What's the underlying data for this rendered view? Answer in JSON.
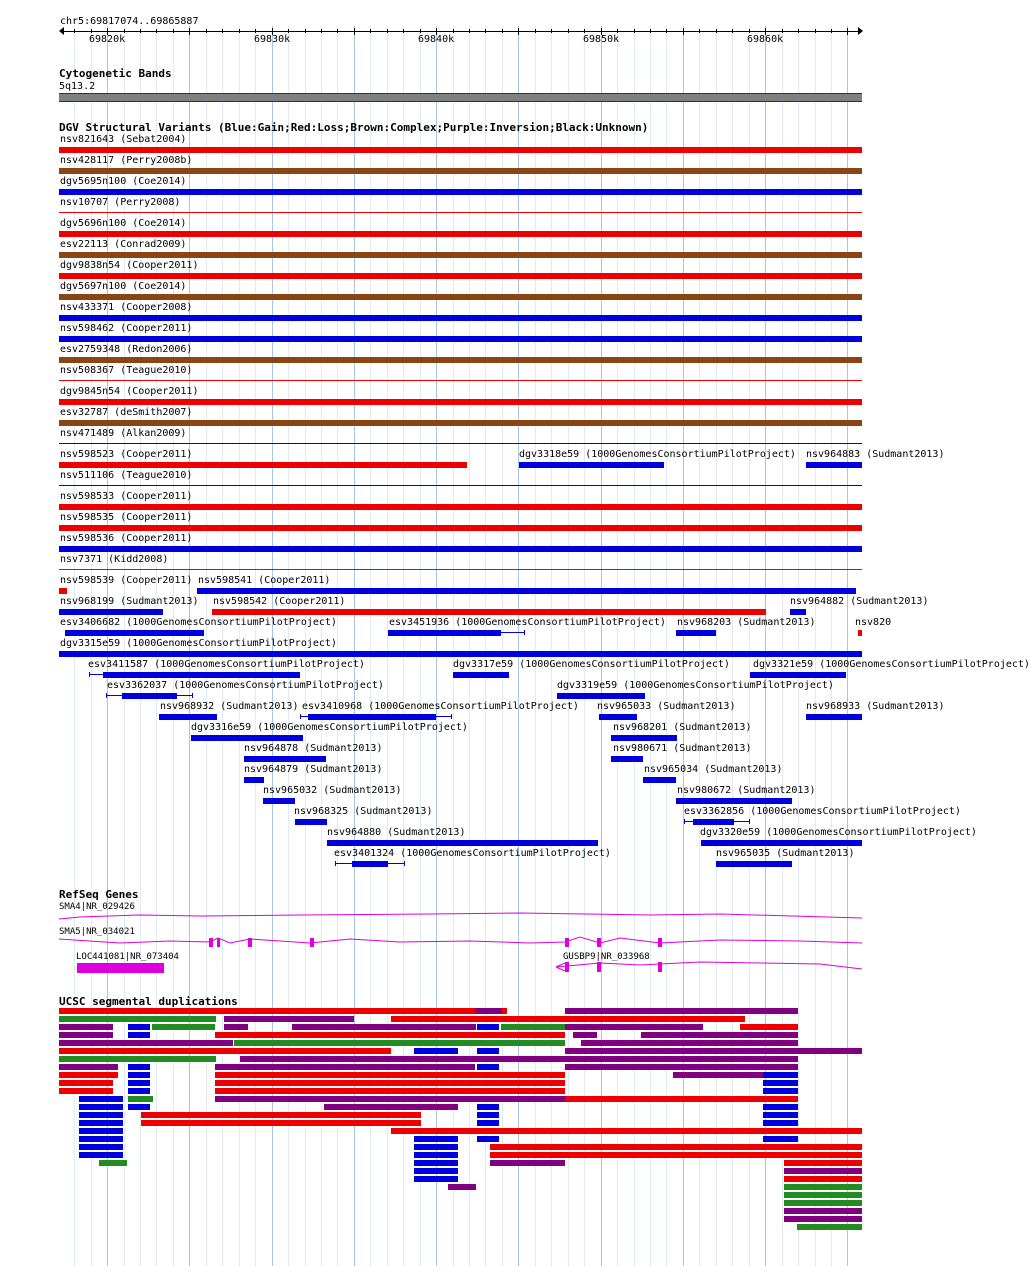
{
  "ruler": {
    "position": "chr5:69817074..69865887",
    "ticks": [
      {
        "label": "69820k",
        "pos": 69820000
      },
      {
        "label": "69830k",
        "pos": 69830000
      },
      {
        "label": "69840k",
        "pos": 69840000
      },
      {
        "label": "69850k",
        "pos": 69850000
      },
      {
        "label": "69860k",
        "pos": 69860000
      }
    ]
  },
  "colors": {
    "gain": "#0000dd",
    "loss": "#ee0000",
    "complex": "#8b4513",
    "inversion": "#800080",
    "seg_green": "#228b22",
    "refseq": "#dd00dd",
    "band": "#808080",
    "grid_major": "#a6c8e6",
    "grid_minor": "#dcebf6"
  },
  "cytobands": {
    "title": "Cytogenetic Bands",
    "band": "5q13.2"
  },
  "dgv": {
    "title": "DGV Structural Variants (Blue:Gain;Red:Loss;Brown:Complex;Purple:Inversion;Black:Unknown)",
    "features": [
      {
        "label": "nsv821643 (Sebat2004)",
        "type": "loss",
        "start": 0,
        "end": 1
      },
      {
        "label": "nsv428117 (Perry2008b)",
        "type": "complex",
        "start": 0,
        "end": 1
      },
      {
        "label": "dgv5695n100 (Coe2014)",
        "type": "gain",
        "start": 0,
        "end": 1
      },
      {
        "label": "nsv10707 (Perry2008)",
        "type": "loss",
        "start": 0,
        "end": 1,
        "thin": true
      },
      {
        "label": "dgv5696n100 (Coe2014)",
        "type": "loss",
        "start": 0,
        "end": 1
      },
      {
        "label": "esv22113 (Conrad2009)",
        "type": "complex",
        "start": 0,
        "end": 1
      },
      {
        "label": "dgv9838n54 (Cooper2011)",
        "type": "loss",
        "start": 0,
        "end": 1
      },
      {
        "label": "dgv5697n100 (Coe2014)",
        "type": "complex",
        "start": 0,
        "end": 1
      },
      {
        "label": "nsv433371 (Cooper2008)",
        "type": "gain",
        "start": 0,
        "end": 1
      },
      {
        "label": "nsv598462 (Cooper2011)",
        "type": "gain",
        "start": 0,
        "end": 1
      },
      {
        "label": "esv2759348 (Redon2006)",
        "type": "complex",
        "start": 0,
        "end": 1
      },
      {
        "label": "nsv508367 (Teague2010)",
        "type": "loss",
        "start": 0,
        "end": 1,
        "thin": true
      },
      {
        "label": "dgv9845n54 (Cooper2011)",
        "type": "loss",
        "start": 0,
        "end": 1
      },
      {
        "label": "esv32787 (deSmith2007)",
        "type": "complex",
        "start": 0,
        "end": 1
      },
      {
        "label": "nsv471489 (Alkan2009)",
        "type": "gain",
        "start": 0,
        "end": 1,
        "thin": true
      },
      {
        "label": "nsv598523 (Cooper2011)",
        "type": "loss",
        "start": 0,
        "end": 0.508
      },
      {
        "label": "nsv511106 (Teague2010)",
        "type": "gain",
        "start": 0,
        "end": 1,
        "thin": true
      },
      {
        "label": "nsv598533 (Cooper2011)",
        "type": "loss",
        "start": 0,
        "end": 1
      },
      {
        "label": "nsv598535 (Cooper2011)",
        "type": "loss",
        "start": 0,
        "end": 1
      },
      {
        "label": "nsv598536 (Cooper2011)",
        "type": "gain",
        "start": 0,
        "end": 1
      },
      {
        "label": "nsv7371 (Kidd2008)",
        "type": "loss",
        "start": 0,
        "end": 1,
        "thin": true
      },
      {
        "label": "nsv598539 (Cooper2011)",
        "type": "loss",
        "start": 0,
        "end": 0.01
      },
      {
        "label": "nsv968199 (Sudmant2013)",
        "type": "gain",
        "start": 0,
        "end": 0.13
      },
      {
        "label": "esv3406682 (1000GenomesConsortiumPilotProject)",
        "type": "gain",
        "start": 0.007,
        "end": 0.18,
        "line_end": 0.18
      },
      {
        "label": "dgv3315e59 (1000GenomesConsortiumPilotProject)",
        "type": "gain",
        "start": 0,
        "end": 1
      },
      {
        "label": "nsv598541 (Cooper2011)",
        "type": "gain",
        "start": 0.172,
        "end": 0.993
      },
      {
        "label": "nsv598542 (Cooper2011)",
        "type": "loss",
        "start": 0.19,
        "end": 0.88
      },
      {
        "label": "esv3451936 (1000GenomesConsortiumPilotProject)",
        "type": "gain",
        "start": 0.41,
        "end": 0.55,
        "line_start": 0.41,
        "line_end": 0.58
      },
      {
        "label": "nsv968203 (Sudmant2013)",
        "type": "gain",
        "start": 0.768,
        "end": 0.818
      },
      {
        "label": "nsv964882 (Sudmant2013)",
        "type": "gain",
        "start": 0.91,
        "end": 0.93
      },
      {
        "label": "nsv820",
        "type": "loss",
        "start": 0.995,
        "end": 1
      },
      {
        "label": "dgv3318e59 (1000GenomesConsortiumPilotProject)",
        "type": "gain",
        "start": 0.573,
        "end": 0.753
      },
      {
        "label": "nsv964883 (Sudmant2013)",
        "type": "gain",
        "start": 0.93,
        "end": 1
      },
      {
        "label": "esv3411587 (1000GenomesConsortiumPilotProject)",
        "type": "gain",
        "start": 0.055,
        "end": 0.3,
        "line_start": 0.037,
        "line_end": 0.3
      },
      {
        "label": "dgv3317e59 (1000GenomesConsortiumPilotProject)",
        "type": "gain",
        "start": 0.491,
        "end": 0.56
      },
      {
        "label": "dgv3321e59 (1000GenomesConsortiumPilotProject)",
        "type": "gain",
        "start": 0.86,
        "end": 0.98
      },
      {
        "label": "esv3362037 (1000GenomesConsortiumPilotProject)",
        "type": "gain",
        "start": 0.078,
        "end": 0.147,
        "line_start": 0.058,
        "line_end": 0.167
      },
      {
        "label": "dgv3319e59 (1000GenomesConsortiumPilotProject)",
        "type": "gain",
        "start": 0.62,
        "end": 0.73
      },
      {
        "label": "nsv968932 (Sudmant2013)",
        "type": "gain",
        "start": 0.125,
        "end": 0.197
      },
      {
        "label": "esv3410968 (1000GenomesConsortiumPilotProject)",
        "type": "gain",
        "start": 0.31,
        "end": 0.47,
        "line_start": 0.3,
        "line_end": 0.49
      },
      {
        "label": "nsv965033 (Sudmant2013)",
        "type": "gain",
        "start": 0.672,
        "end": 0.72
      },
      {
        "label": "nsv968933 (Sudmant2013)",
        "type": "gain",
        "start": 0.93,
        "end": 1
      },
      {
        "label": "dgv3316e59 (1000GenomesConsortiumPilotProject)",
        "type": "gain",
        "start": 0.164,
        "end": 0.304
      },
      {
        "label": "nsv968201 (Sudmant2013)",
        "type": "gain",
        "start": 0.688,
        "end": 0.77
      },
      {
        "label": "nsv964878 (Sudmant2013)",
        "type": "gain",
        "start": 0.23,
        "end": 0.333
      },
      {
        "label": "nsv980671 (Sudmant2013)",
        "type": "gain",
        "start": 0.688,
        "end": 0.727
      },
      {
        "label": "nsv964879 (Sudmant2013)",
        "type": "gain",
        "start": 0.23,
        "end": 0.255
      },
      {
        "label": "nsv965034 (Sudmant2013)",
        "type": "gain",
        "start": 0.727,
        "end": 0.768
      },
      {
        "label": "nsv965032 (Sudmant2013)",
        "type": "gain",
        "start": 0.254,
        "end": 0.294
      },
      {
        "label": "nsv980672 (Sudmant2013)",
        "type": "gain",
        "start": 0.768,
        "end": 0.913
      },
      {
        "label": "nsv968325 (Sudmant2013)",
        "type": "gain",
        "start": 0.294,
        "end": 0.334
      },
      {
        "label": "esv3362856 (1000GenomesConsortiumPilotProject)",
        "type": "gain",
        "start": 0.79,
        "end": 0.84,
        "line_start": 0.778,
        "line_end": 0.86
      },
      {
        "label": "nsv964880 (Sudmant2013)",
        "type": "gain",
        "start": 0.334,
        "end": 0.671
      },
      {
        "label": "dgv3320e59 (1000GenomesConsortiumPilotProject)",
        "type": "gain",
        "start": 0.8,
        "end": 1
      },
      {
        "label": "esv3401324 (1000GenomesConsortiumPilotProject)",
        "type": "gain",
        "start": 0.365,
        "end": 0.41,
        "line_start": 0.344,
        "line_end": 0.431
      },
      {
        "label": "nsv965035 (Sudmant2013)",
        "type": "gain",
        "start": 0.818,
        "end": 0.913
      }
    ]
  },
  "refseq": {
    "title": "RefSeq Genes",
    "genes": [
      {
        "label": "SMA4|NR_029426"
      },
      {
        "label": "SMA5|NR_034021"
      },
      {
        "label": "LOC441081|NR_073404"
      },
      {
        "label": "GUSBP9|NR_033968"
      }
    ]
  },
  "segdups": {
    "title": "UCSC segmental duplications",
    "colors": [
      "#ee0000",
      "#800080",
      "#228b22",
      "#0000dd"
    ]
  }
}
